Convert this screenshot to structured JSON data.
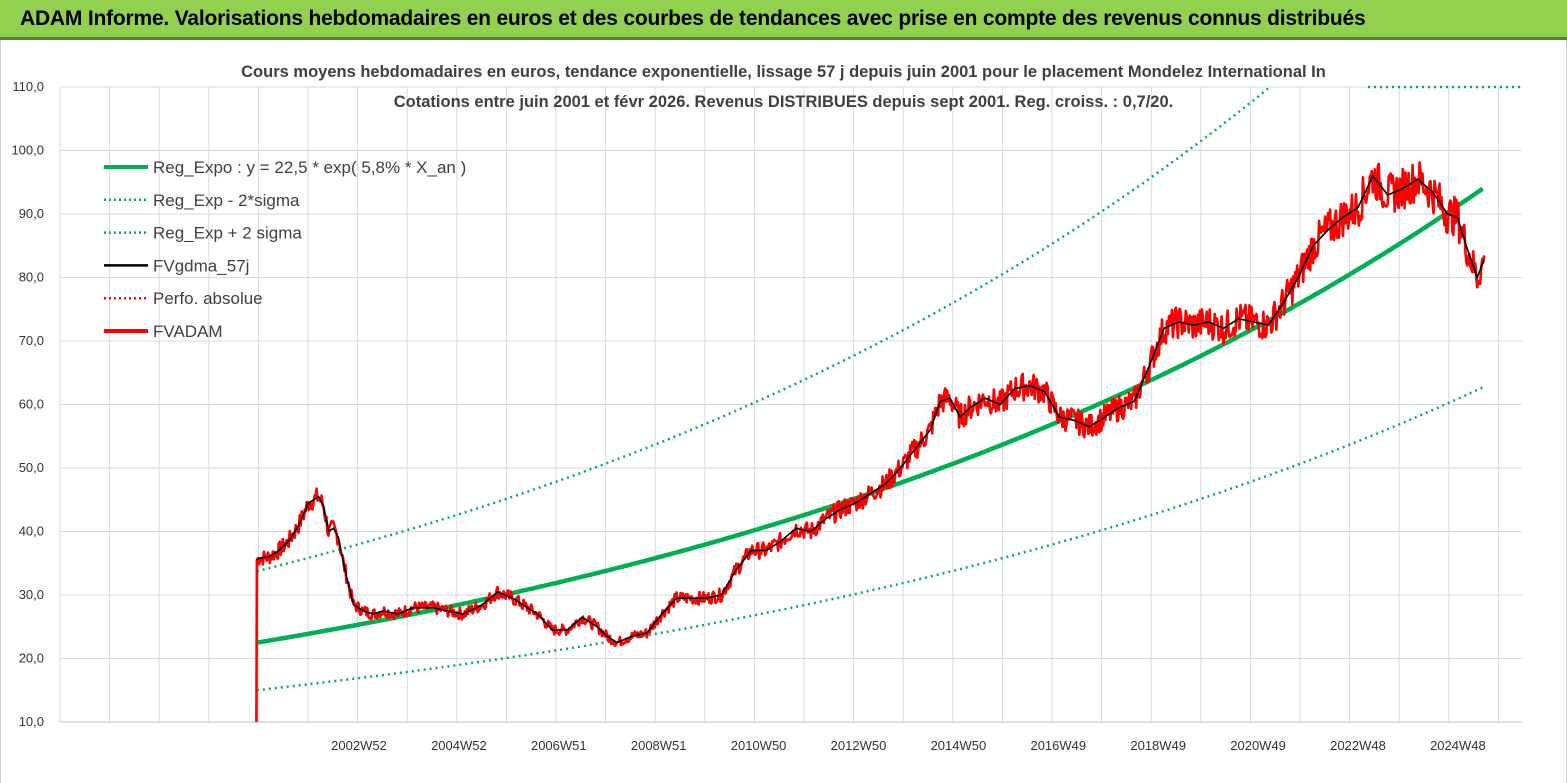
{
  "banner": {
    "title": "ADAM Informe. Valorisations hebdomadaires en euros et des courbes de tendances avec prise en compte des revenus connus distribués",
    "color": "#92d050"
  },
  "chart_data": {
    "type": "line",
    "title": "Cours moyens hebdomadaires en euros, tendance exponentielle, lissage 57 j depuis juin 2001 pour le placement Mondelez International In",
    "subtitle": "Cotations entre juin 2001  et févr 2026.  Revenus DISTRIBUES depuis sept 2001. Reg. croiss. : 0,7/20.",
    "xlabel": "",
    "ylabel": "",
    "ylim": [
      10,
      110
    ],
    "y_ticks": [
      "10,0",
      "20,0",
      "30,0",
      "40,0",
      "50,0",
      "60,0",
      "70,0",
      "80,0",
      "90,0",
      "100,0",
      "110,0"
    ],
    "x_ticks": [
      "2002W52",
      "2004W52",
      "2006W51",
      "2008W51",
      "2010W50",
      "2012W50",
      "2014W50",
      "2016W49",
      "2018W49",
      "2020W49",
      "2022W48",
      "2024W48"
    ],
    "x_range": [
      1997.5,
      2026.9
    ],
    "grid": true,
    "legend_position": "top-left",
    "regression": {
      "a": 22.5,
      "growth": 0.058,
      "start": 2001.46,
      "end": 2026.15
    },
    "series": [
      {
        "name": "Reg_Expo : y = 22,5 * exp( 5,8% *  X_an )",
        "color": "#00b050",
        "style": "solid-thick"
      },
      {
        "name": "Reg_Exp - 2*sigma",
        "color": "#00b050",
        "style": "dotted",
        "factor": 0.667
      },
      {
        "name": "Reg_Exp + 2 sigma",
        "color": "#00b050",
        "style": "dotted",
        "factor": 1.5
      },
      {
        "name": "FVgdma_57j",
        "color": "#000000",
        "style": "solid"
      },
      {
        "name": "Perfo. absolue",
        "color": "#ff0000",
        "style": "dotted"
      },
      {
        "name": "FVADAM",
        "color": "#ff0000",
        "style": "solid-thick",
        "x": [
          2001.45,
          2001.46,
          2001.5,
          2001.7,
          2001.9,
          2002.1,
          2002.3,
          2002.5,
          2002.7,
          2002.8,
          2002.9,
          2003.0,
          2003.1,
          2003.2,
          2003.4,
          2003.6,
          2003.8,
          2004.0,
          2004.3,
          2004.6,
          2005.0,
          2005.3,
          2005.6,
          2006.0,
          2006.3,
          2006.6,
          2006.9,
          2007.1,
          2007.4,
          2007.7,
          2008.0,
          2008.3,
          2008.5,
          2008.7,
          2009.0,
          2009.3,
          2009.6,
          2009.9,
          2010.2,
          2010.5,
          2010.8,
          2011.1,
          2011.4,
          2011.7,
          2012.0,
          2012.3,
          2012.6,
          2012.9,
          2013.2,
          2013.5,
          2013.8,
          2014.1,
          2014.4,
          2014.7,
          2015.0,
          2015.2,
          2015.4,
          2015.6,
          2015.8,
          2016.1,
          2016.4,
          2016.7,
          2017.0,
          2017.3,
          2017.6,
          2017.9,
          2018.2,
          2018.5,
          2018.8,
          2019.1,
          2019.4,
          2019.7,
          2020.0,
          2020.3,
          2020.6,
          2020.9,
          2021.2,
          2021.5,
          2021.8,
          2022.1,
          2022.4,
          2022.7,
          2023.0,
          2023.3,
          2023.6,
          2023.9,
          2024.2,
          2024.5,
          2024.8,
          2025.1,
          2025.4,
          2025.6,
          2025.8,
          2026.0,
          2026.15
        ],
        "values": [
          10,
          35.5,
          35.8,
          36,
          37,
          38.5,
          41,
          44.5,
          45.5,
          44,
          40,
          40.5,
          39,
          35,
          28.5,
          27.5,
          27,
          27.5,
          27,
          28,
          28,
          27.5,
          27,
          28.5,
          30.5,
          29.5,
          28,
          27,
          24.5,
          24.5,
          26.5,
          25,
          23.5,
          22.5,
          23.5,
          24,
          27,
          29.5,
          29.5,
          29.5,
          30,
          34,
          37,
          37,
          38.5,
          40.5,
          40,
          42,
          43.5,
          44.5,
          46,
          47.5,
          50,
          53,
          56,
          60.5,
          61,
          58,
          59.5,
          61,
          60,
          62.5,
          63,
          62,
          58,
          57.5,
          56.5,
          58,
          59.5,
          60.5,
          66,
          72,
          73,
          72.5,
          73,
          72,
          73.5,
          73,
          72.5,
          76,
          80,
          85,
          87.5,
          89.5,
          91,
          96,
          93,
          94,
          95.5,
          93.5,
          90,
          89.5,
          84.5,
          80,
          83
        ]
      }
    ]
  }
}
